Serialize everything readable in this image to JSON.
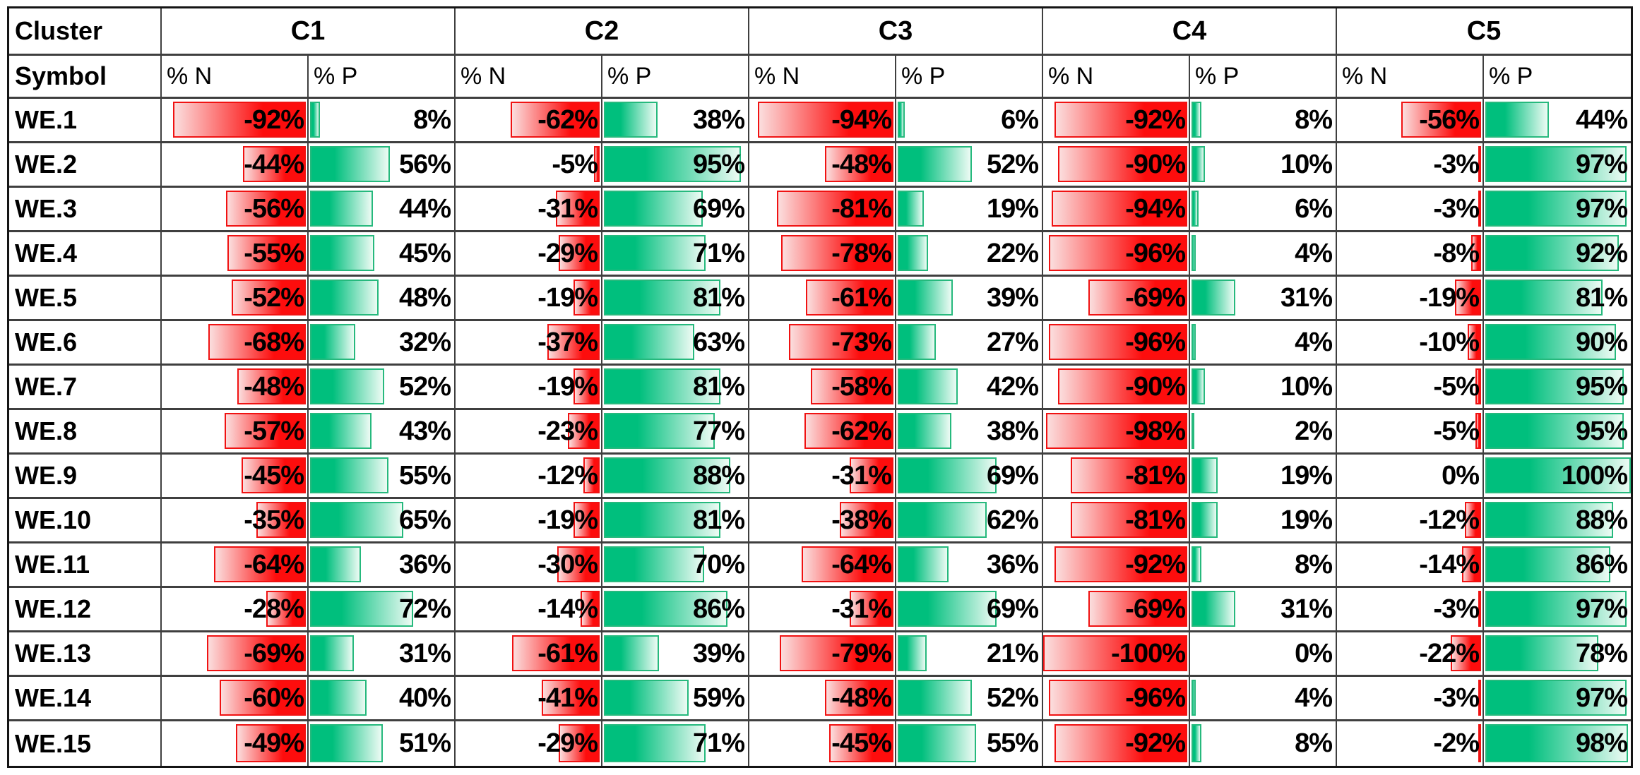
{
  "table": {
    "corner_top": "Cluster",
    "corner_bottom": "Symbol",
    "colors": {
      "negative_bar_solid": "#fd0d0d",
      "negative_bar_fade": "#fbdede",
      "negative_bar_border": "#f01212",
      "positive_bar_solid": "#00bf7d",
      "positive_bar_fade": "#edfbf4",
      "positive_bar_border": "#26b97d",
      "grid_line": "#3f3f3f",
      "text": "#000000"
    }
  },
  "chart_data": {
    "type": "table",
    "title": "Cluster vs Symbol percentage table with negative (red) and positive (green) data bars",
    "column_groups": [
      "C1",
      "C2",
      "C3",
      "C4",
      "C5"
    ],
    "subheaders": [
      "% N",
      "% P"
    ],
    "value_format": "percent",
    "bar_range_abs": [
      0,
      100
    ],
    "rows": [
      {
        "symbol": "WE.1",
        "values": [
          -92,
          8,
          -62,
          38,
          -94,
          6,
          -92,
          8,
          -56,
          44
        ]
      },
      {
        "symbol": "WE.2",
        "values": [
          -44,
          56,
          -5,
          95,
          -48,
          52,
          -90,
          10,
          -3,
          97
        ]
      },
      {
        "symbol": "WE.3",
        "values": [
          -56,
          44,
          -31,
          69,
          -81,
          19,
          -94,
          6,
          -3,
          97
        ]
      },
      {
        "symbol": "WE.4",
        "values": [
          -55,
          45,
          -29,
          71,
          -78,
          22,
          -96,
          4,
          -8,
          92
        ]
      },
      {
        "symbol": "WE.5",
        "values": [
          -52,
          48,
          -19,
          81,
          -61,
          39,
          -69,
          31,
          -19,
          81
        ]
      },
      {
        "symbol": "WE.6",
        "values": [
          -68,
          32,
          -37,
          63,
          -73,
          27,
          -96,
          4,
          -10,
          90
        ]
      },
      {
        "symbol": "WE.7",
        "values": [
          -48,
          52,
          -19,
          81,
          -58,
          42,
          -90,
          10,
          -5,
          95
        ]
      },
      {
        "symbol": "WE.8",
        "values": [
          -57,
          43,
          -23,
          77,
          -62,
          38,
          -98,
          2,
          -5,
          95
        ]
      },
      {
        "symbol": "WE.9",
        "values": [
          -45,
          55,
          -12,
          88,
          -31,
          69,
          -81,
          19,
          0,
          100
        ]
      },
      {
        "symbol": "WE.10",
        "values": [
          -35,
          65,
          -19,
          81,
          -38,
          62,
          -81,
          19,
          -12,
          88
        ]
      },
      {
        "symbol": "WE.11",
        "values": [
          -64,
          36,
          -30,
          70,
          -64,
          36,
          -92,
          8,
          -14,
          86
        ]
      },
      {
        "symbol": "WE.12",
        "values": [
          -28,
          72,
          -14,
          86,
          -31,
          69,
          -69,
          31,
          -3,
          97
        ]
      },
      {
        "symbol": "WE.13",
        "values": [
          -69,
          31,
          -61,
          39,
          -79,
          21,
          -100,
          0,
          -22,
          78
        ]
      },
      {
        "symbol": "WE.14",
        "values": [
          -60,
          40,
          -41,
          59,
          -48,
          52,
          -96,
          4,
          -3,
          97
        ]
      },
      {
        "symbol": "WE.15",
        "values": [
          -49,
          51,
          -29,
          71,
          -45,
          55,
          -92,
          8,
          -2,
          98
        ]
      }
    ]
  }
}
